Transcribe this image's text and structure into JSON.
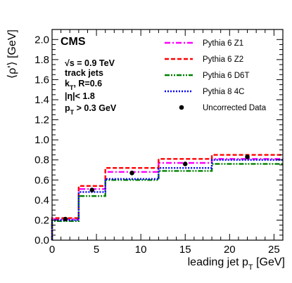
{
  "chart_data": {
    "type": "line",
    "experiment": "CMS",
    "annotations": [
      "√s = 0.9 TeV",
      "track jets",
      "k_T, R=0.6",
      "|η|< 1.8",
      "p_T > 0.3 GeV"
    ],
    "xlabel": "leading jet p_T [GeV]",
    "ylabel": "⟨ρ'⟩ [GeV]",
    "xlim": [
      0,
      26
    ],
    "ylim": [
      0,
      2.1
    ],
    "xticks": [
      "0",
      "5",
      "10",
      "15",
      "20",
      "25"
    ],
    "yticks": [
      "0.0",
      "0.2",
      "0.4",
      "0.6",
      "0.8",
      "1.0",
      "1.2",
      "1.4",
      "1.6",
      "1.8",
      "2.0"
    ],
    "bin_edges": [
      0,
      3,
      6,
      12,
      18,
      26
    ],
    "legend_position": "top-right",
    "series": [
      {
        "name": "Pythia 6 Z1",
        "color": "#ff00ff",
        "style": "dash-dot",
        "values": [
          0.21,
          0.51,
          0.68,
          0.77,
          0.81
        ]
      },
      {
        "name": "Pythia 6 Z2",
        "color": "#ff0000",
        "style": "dashed",
        "values": [
          0.22,
          0.54,
          0.72,
          0.81,
          0.85
        ]
      },
      {
        "name": "Pythia 6 D6T",
        "color": "#008000",
        "style": "dash-dot-dot",
        "values": [
          0.19,
          0.44,
          0.6,
          0.69,
          0.76
        ]
      },
      {
        "name": "Pythia 8 4C",
        "color": "#0000ff",
        "style": "dotted",
        "values": [
          0.2,
          0.48,
          0.61,
          0.72,
          0.8
        ]
      }
    ],
    "data": {
      "name": "Uncorrected Data",
      "color": "#000000",
      "x": [
        1.5,
        4.5,
        9,
        15,
        22
      ],
      "y": [
        0.21,
        0.5,
        0.67,
        0.76,
        0.83
      ]
    }
  }
}
